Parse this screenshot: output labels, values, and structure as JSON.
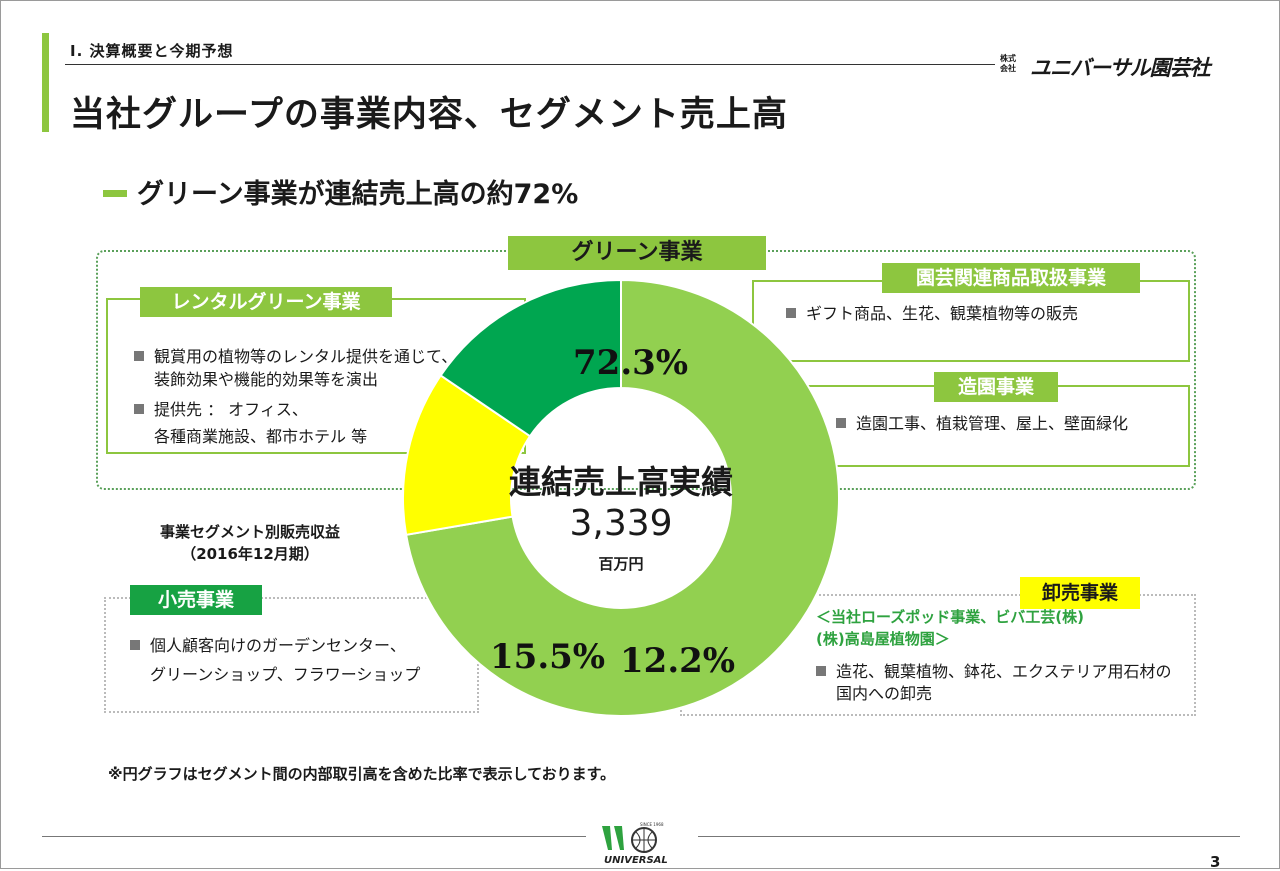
{
  "header": {
    "section_label": "Ⅰ. 決算概要と今期予想",
    "company_small": "株式\n会社",
    "company_name": "ユニバーサル園芸社",
    "title": "当社グループの事業内容、セグメント売上高"
  },
  "subheading": "グリーン事業が連結売上高の約72%",
  "segments": {
    "green_label": "グリーン事業",
    "rental": {
      "label": "レンタルグリーン事業",
      "bullet1_line1": "観賞用の植物等のレンタル提供を通じて、",
      "bullet1_line2": "装飾効果や機能的効果等を演出",
      "bullet2_line1": "提供先 ： オフィス、",
      "bullet2_line2": "各種商業施設、都市ホテル 等"
    },
    "gardening_goods": {
      "label": "園芸関連商品取扱事業",
      "bullet1": "ギフト商品、生花、観葉植物等の販売"
    },
    "landscaping": {
      "label": "造園事業",
      "bullet1": "造園工事、植栽管理、屋上、壁面緑化"
    },
    "retail": {
      "label": "小売事業",
      "bullet1_line1": "個人顧客向けのガーデンセンター、",
      "bullet1_line2": "グリーンショップ、フラワーショップ"
    },
    "wholesale": {
      "label": "卸売事業",
      "companies_line1": "＜当社ローズポッド事業、ビバ工芸(株)",
      "companies_line2": "(株)高島屋植物園＞",
      "bullet1_line1": "造花、観葉植物、鉢花、エクステリア用石材の",
      "bullet1_line2": "国内への卸売"
    }
  },
  "chart_caption_line1": "事業セグメント別販売収益",
  "chart_caption_line2": "（2016年12月期）",
  "chart_data": {
    "type": "pie",
    "title": "事業セグメント別販売収益（2016年12月期）",
    "center_label": "連結売上高実績",
    "center_value": "3,339",
    "center_unit": "百万円",
    "categories": [
      "グリーン事業",
      "卸売事業",
      "小売事業"
    ],
    "values": [
      72.3,
      12.2,
      15.5
    ],
    "value_labels": [
      "72.3%",
      "12.2%",
      "15.5%"
    ],
    "colors": [
      "#92d050",
      "#ffff00",
      "#00a650"
    ]
  },
  "footnote": "※円グラフはセグメント間の内部取引高を含めた比率で表示しております。",
  "footer": {
    "logo_text": "UNIVERSAL",
    "logo_since": "SINCE 1968",
    "page_number": "3"
  },
  "colors": {
    "accent": "#8dc63f",
    "dark_green": "#17a243",
    "yellow": "#ffff00"
  }
}
